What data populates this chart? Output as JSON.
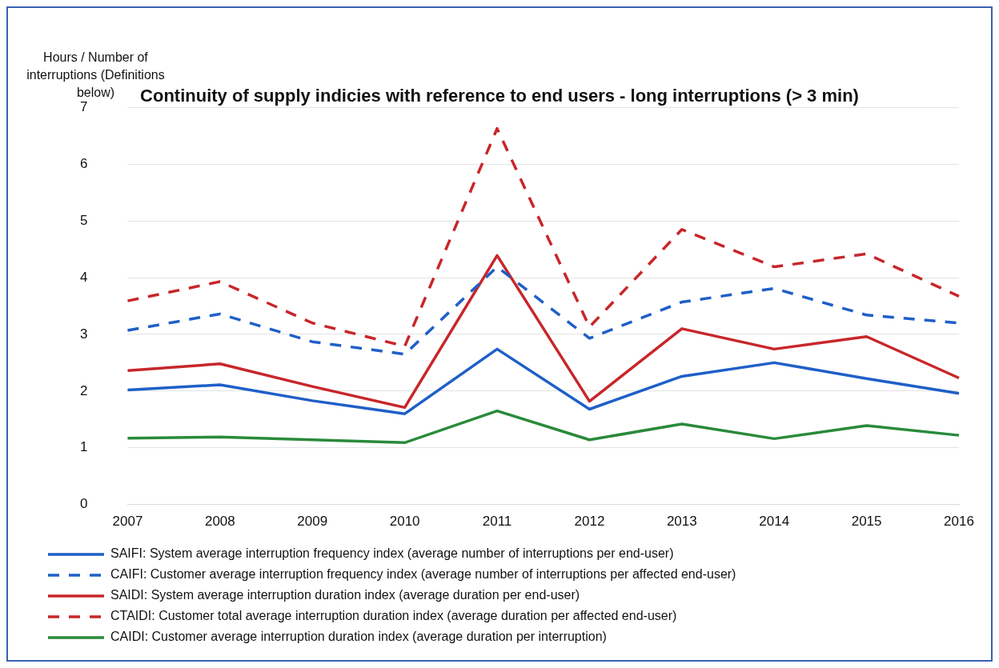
{
  "chart_data": {
    "type": "line",
    "title": "Continuity of supply indicies with reference to end users - long interruptions (> 3 min)",
    "ylabel": "Hours / Number of interruptions (Definitions below)",
    "categories": [
      "2007",
      "2008",
      "2009",
      "2010",
      "2011",
      "2012",
      "2013",
      "2014",
      "2015",
      "2016"
    ],
    "series": [
      {
        "name": "SAIFI: System average interruption frequency index (average number of interruptions per end-user)",
        "color": "#1f5fc8",
        "line_style": "solid",
        "values": [
          2.02,
          2.11,
          1.83,
          1.6,
          2.74,
          1.68,
          2.26,
          2.5,
          2.22,
          1.96
        ]
      },
      {
        "name": "CAIFI: Customer average interruption frequency index (average number of interruptions per affected end-user)",
        "color": "#1f5fc8",
        "line_style": "dashed",
        "values": [
          3.07,
          3.36,
          2.87,
          2.65,
          4.19,
          2.93,
          3.57,
          3.81,
          3.34,
          3.2
        ]
      },
      {
        "name": "SAIDI: System average interruption duration index (average duration per end-user)",
        "color": "#c8262a",
        "line_style": "solid",
        "values": [
          2.36,
          2.48,
          2.08,
          1.71,
          4.39,
          1.82,
          3.1,
          2.74,
          2.96,
          2.23
        ]
      },
      {
        "name": "CTAIDI: Customer total average interruption duration index (average duration per affected end-user)",
        "color": "#c8262a",
        "line_style": "dashed",
        "values": [
          3.59,
          3.93,
          3.2,
          2.79,
          6.63,
          3.13,
          4.85,
          4.19,
          4.42,
          3.67
        ]
      },
      {
        "name": "CAIDI: Customer average interruption duration index (average duration per interruption)",
        "color": "#2a8a3a",
        "line_style": "solid",
        "values": [
          1.17,
          1.19,
          1.14,
          1.09,
          1.65,
          1.14,
          1.42,
          1.16,
          1.39,
          1.22
        ]
      }
    ],
    "ylim": [
      0,
      7
    ],
    "yticks": [
      0,
      1,
      2,
      3,
      4,
      5,
      6,
      7
    ],
    "grid": "y",
    "legend": "bottom",
    "marker": "none"
  }
}
